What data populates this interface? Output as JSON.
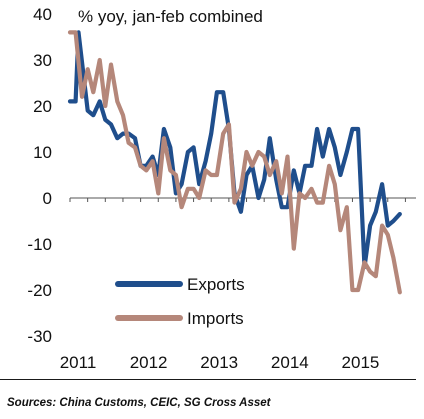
{
  "chart_data": {
    "type": "line",
    "title": "% yoy, jan-feb combined",
    "xlabel": "",
    "ylabel": "",
    "ylim": [
      -30,
      40
    ],
    "yticks": [
      40,
      30,
      20,
      10,
      0,
      -10,
      -20,
      -30
    ],
    "xlim": [
      2011.0,
      2015.9
    ],
    "xticks": [
      "2011",
      "2012",
      "2013",
      "2014",
      "2015"
    ],
    "grid": false,
    "legend": "bottom-left",
    "series": [
      {
        "name": "Exports",
        "color": "#1f4e8c",
        "points": [
          [
            2011.0,
            21
          ],
          [
            2011.08,
            21
          ],
          [
            2011.12,
            36
          ],
          [
            2011.25,
            19
          ],
          [
            2011.33,
            18
          ],
          [
            2011.42,
            21
          ],
          [
            2011.5,
            17
          ],
          [
            2011.58,
            16
          ],
          [
            2011.67,
            13
          ],
          [
            2011.75,
            14
          ],
          [
            2011.83,
            14
          ],
          [
            2011.92,
            13
          ],
          [
            2012.0,
            7
          ],
          [
            2012.08,
            7
          ],
          [
            2012.17,
            9
          ],
          [
            2012.25,
            5
          ],
          [
            2012.33,
            15
          ],
          [
            2012.42,
            11
          ],
          [
            2012.5,
            1
          ],
          [
            2012.58,
            3
          ],
          [
            2012.67,
            10
          ],
          [
            2012.75,
            11
          ],
          [
            2012.83,
            3
          ],
          [
            2012.92,
            8
          ],
          [
            2013.0,
            14
          ],
          [
            2013.08,
            23
          ],
          [
            2013.17,
            23
          ],
          [
            2013.25,
            15
          ],
          [
            2013.33,
            1
          ],
          [
            2013.42,
            -3
          ],
          [
            2013.5,
            5
          ],
          [
            2013.58,
            7
          ],
          [
            2013.67,
            0
          ],
          [
            2013.75,
            4
          ],
          [
            2013.83,
            13
          ],
          [
            2013.92,
            4
          ],
          [
            2014.0,
            -2
          ],
          [
            2014.08,
            -2
          ],
          [
            2014.17,
            6
          ],
          [
            2014.25,
            1
          ],
          [
            2014.33,
            7
          ],
          [
            2014.42,
            7
          ],
          [
            2014.5,
            15
          ],
          [
            2014.58,
            9
          ],
          [
            2014.67,
            15
          ],
          [
            2014.75,
            11
          ],
          [
            2014.83,
            5
          ],
          [
            2014.92,
            10
          ],
          [
            2015.0,
            15
          ],
          [
            2015.08,
            15
          ],
          [
            2015.17,
            -15
          ],
          [
            2015.25,
            -6
          ],
          [
            2015.33,
            -3
          ],
          [
            2015.42,
            3
          ],
          [
            2015.5,
            -6
          ],
          [
            2015.58,
            -5
          ],
          [
            2015.67,
            -3.5
          ]
        ]
      },
      {
        "name": "Imports",
        "color": "#b5877a",
        "points": [
          [
            2011.0,
            36
          ],
          [
            2011.08,
            36
          ],
          [
            2011.17,
            22
          ],
          [
            2011.25,
            28
          ],
          [
            2011.33,
            23
          ],
          [
            2011.42,
            30
          ],
          [
            2011.5,
            20
          ],
          [
            2011.58,
            29
          ],
          [
            2011.67,
            21
          ],
          [
            2011.75,
            18
          ],
          [
            2011.83,
            12
          ],
          [
            2011.92,
            11
          ],
          [
            2012.0,
            7
          ],
          [
            2012.08,
            6
          ],
          [
            2012.17,
            8
          ],
          [
            2012.25,
            1
          ],
          [
            2012.33,
            13
          ],
          [
            2012.42,
            6
          ],
          [
            2012.5,
            5
          ],
          [
            2012.58,
            -2
          ],
          [
            2012.67,
            2
          ],
          [
            2012.75,
            2
          ],
          [
            2012.83,
            0
          ],
          [
            2012.92,
            6
          ],
          [
            2013.0,
            5
          ],
          [
            2013.08,
            5
          ],
          [
            2013.17,
            14
          ],
          [
            2013.25,
            16
          ],
          [
            2013.33,
            -1
          ],
          [
            2013.42,
            2
          ],
          [
            2013.5,
            10
          ],
          [
            2013.58,
            7
          ],
          [
            2013.67,
            10
          ],
          [
            2013.75,
            9
          ],
          [
            2013.83,
            5
          ],
          [
            2013.92,
            8
          ],
          [
            2014.0,
            1
          ],
          [
            2014.08,
            9
          ],
          [
            2014.17,
            -11
          ],
          [
            2014.25,
            1
          ],
          [
            2014.33,
            0
          ],
          [
            2014.42,
            2
          ],
          [
            2014.5,
            -1
          ],
          [
            2014.58,
            -1
          ],
          [
            2014.67,
            7
          ],
          [
            2014.75,
            3
          ],
          [
            2014.83,
            -7
          ],
          [
            2014.92,
            -2
          ],
          [
            2015.0,
            -20
          ],
          [
            2015.08,
            -20
          ],
          [
            2015.17,
            -14
          ],
          [
            2015.25,
            -16
          ],
          [
            2015.33,
            -17
          ],
          [
            2015.42,
            -6
          ],
          [
            2015.5,
            -8
          ],
          [
            2015.58,
            -13
          ],
          [
            2015.67,
            -20.5
          ]
        ]
      }
    ]
  },
  "source_note": "Sources: China Customs, CEIC, SG Cross Asset"
}
